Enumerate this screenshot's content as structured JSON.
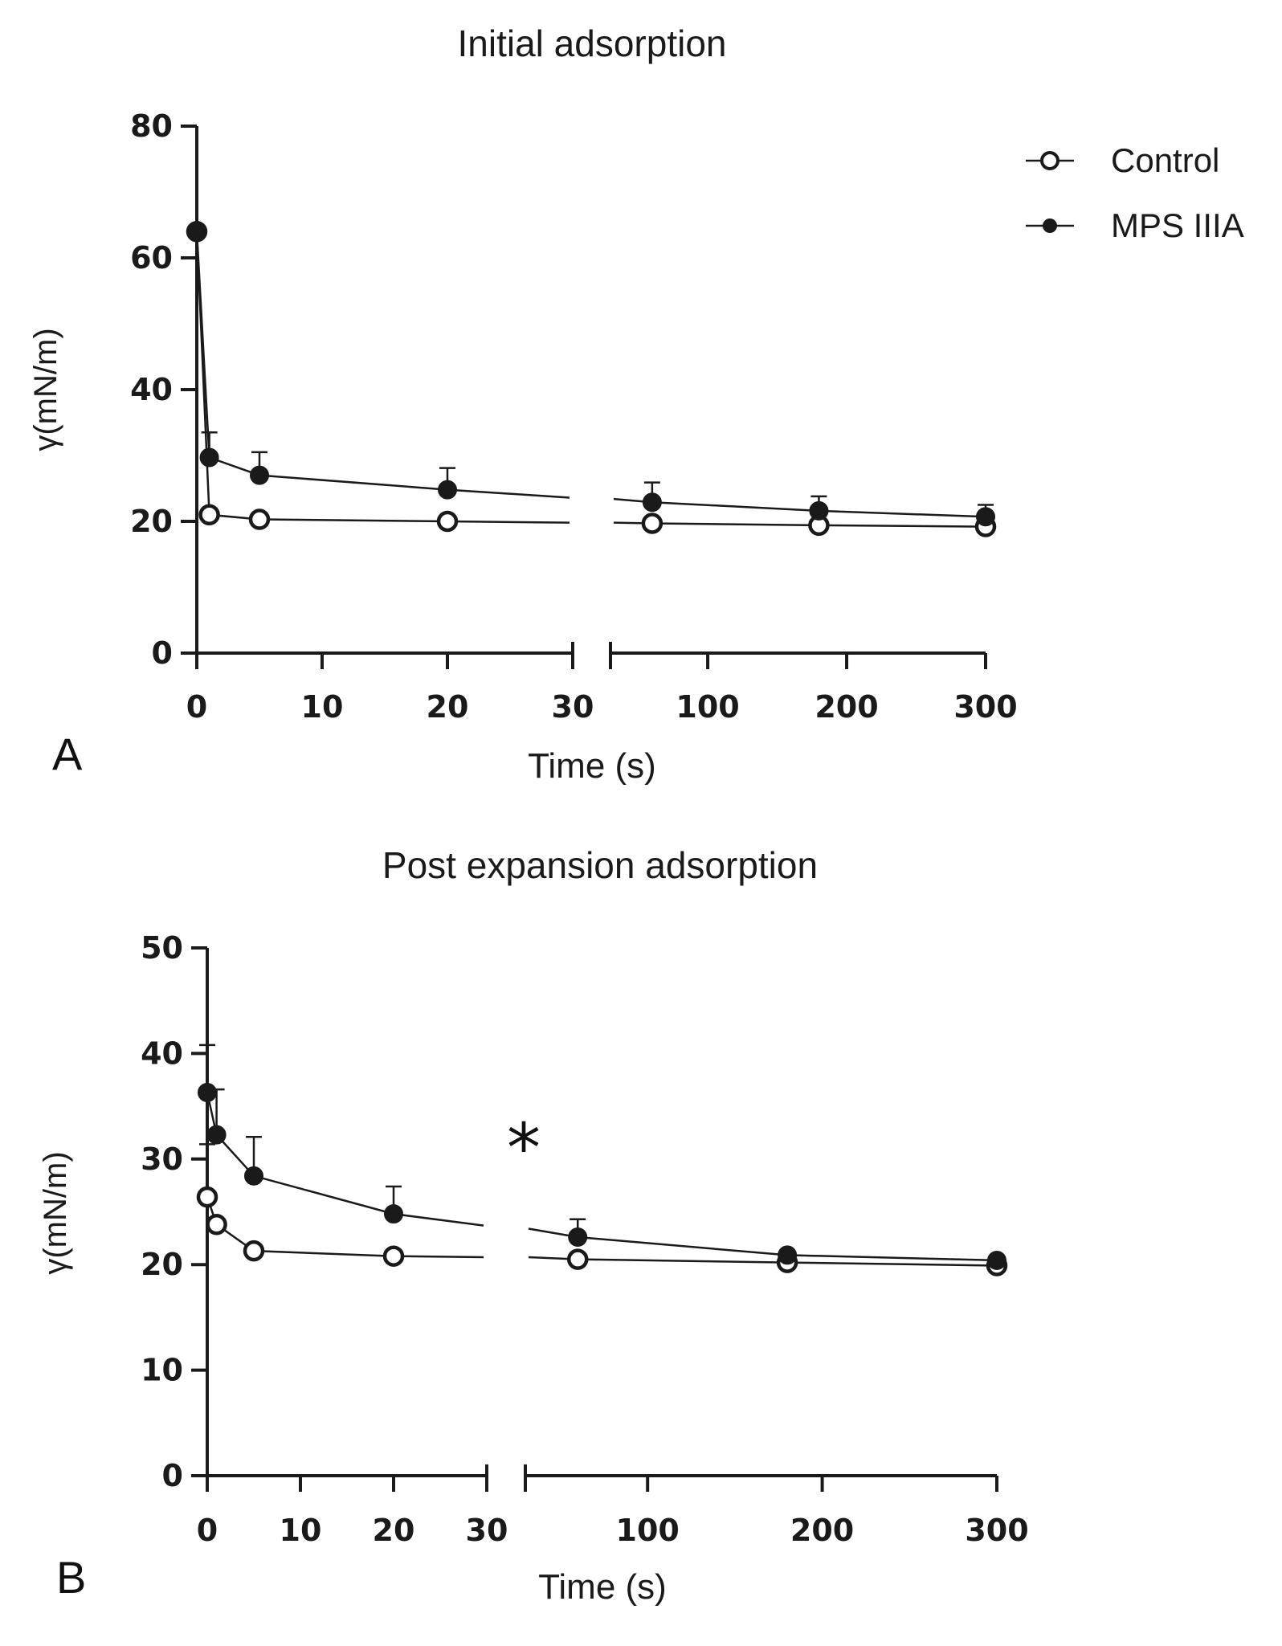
{
  "figure": {
    "legend": [
      {
        "name": "Control",
        "marker": "open-circle"
      },
      {
        "name": "MPS IIIA",
        "marker": "filled-circle"
      }
    ],
    "colors": {
      "ink": "#1a1a1a",
      "background": "#ffffff"
    }
  },
  "chart_data": [
    {
      "type": "line",
      "panel_label": "A",
      "title": "Initial adsorption",
      "xlabel": "Time (s)",
      "ylabel": "γ(mN/m)",
      "ylim": [
        0,
        80
      ],
      "yticks": [
        "0",
        "20",
        "40",
        "60",
        "80"
      ],
      "x_segments": [
        {
          "range": [
            0,
            30
          ],
          "ticks": [
            "0",
            "10",
            "20",
            "30"
          ]
        },
        {
          "range": [
            30,
            300
          ],
          "ticks": [
            "100",
            "200",
            "300"
          ]
        }
      ],
      "series": [
        {
          "name": "Control",
          "marker": "open",
          "points": [
            {
              "x": 0,
              "y": 64
            },
            {
              "x": 1,
              "y": 21
            },
            {
              "x": 5,
              "y": 20.3
            },
            {
              "x": 20,
              "y": 20
            },
            {
              "x": 60,
              "y": 19.7
            },
            {
              "x": 180,
              "y": 19.4
            },
            {
              "x": 300,
              "y": 19.2
            }
          ],
          "fit_gap_y": [
            19.8,
            19.8
          ]
        },
        {
          "name": "MPS IIIA",
          "marker": "filled",
          "points": [
            {
              "x": 0,
              "y": 64,
              "err": 0.8
            },
            {
              "x": 1,
              "y": 29.7,
              "err": 3.8
            },
            {
              "x": 5,
              "y": 27,
              "err": 3.5
            },
            {
              "x": 20,
              "y": 24.8,
              "err": 3.3
            },
            {
              "x": 60,
              "y": 22.9,
              "err": 3
            },
            {
              "x": 180,
              "y": 21.6,
              "err": 2.2
            },
            {
              "x": 300,
              "y": 20.7,
              "err": 1.8
            }
          ],
          "fit_gap_y": [
            23.6,
            23.4
          ]
        }
      ]
    },
    {
      "type": "line",
      "panel_label": "B",
      "title": "Post expansion adsorption",
      "xlabel": "Time (s)",
      "ylabel": "γ(mN/m)",
      "ylim": [
        0,
        50
      ],
      "yticks": [
        "0",
        "10",
        "20",
        "30",
        "40",
        "50"
      ],
      "x_segments": [
        {
          "range": [
            0,
            30
          ],
          "ticks": [
            "0",
            "10",
            "20",
            "30"
          ]
        },
        {
          "range": [
            30,
            300
          ],
          "ticks": [
            "100",
            "200",
            "300"
          ]
        }
      ],
      "annotation": "*",
      "series": [
        {
          "name": "Control",
          "marker": "open",
          "points": [
            {
              "x": 0,
              "y": 26.4,
              "err": 5
            },
            {
              "x": 1,
              "y": 23.8
            },
            {
              "x": 5,
              "y": 21.3
            },
            {
              "x": 20,
              "y": 20.8
            },
            {
              "x": 60,
              "y": 20.5
            },
            {
              "x": 180,
              "y": 20.2
            },
            {
              "x": 300,
              "y": 19.9
            }
          ],
          "fit_gap_y": [
            20.7,
            20.7
          ]
        },
        {
          "name": "MPS IIIA",
          "marker": "filled",
          "points": [
            {
              "x": 0,
              "y": 36.3,
              "err": 4.5
            },
            {
              "x": 1,
              "y": 32.3,
              "err": 4.3
            },
            {
              "x": 5,
              "y": 28.4,
              "err": 3.7
            },
            {
              "x": 20,
              "y": 24.8,
              "err": 2.6
            },
            {
              "x": 60,
              "y": 22.6,
              "err": 1.7
            },
            {
              "x": 180,
              "y": 20.9
            },
            {
              "x": 300,
              "y": 20.4
            }
          ],
          "fit_gap_y": [
            23.7,
            23.4
          ]
        }
      ]
    }
  ]
}
